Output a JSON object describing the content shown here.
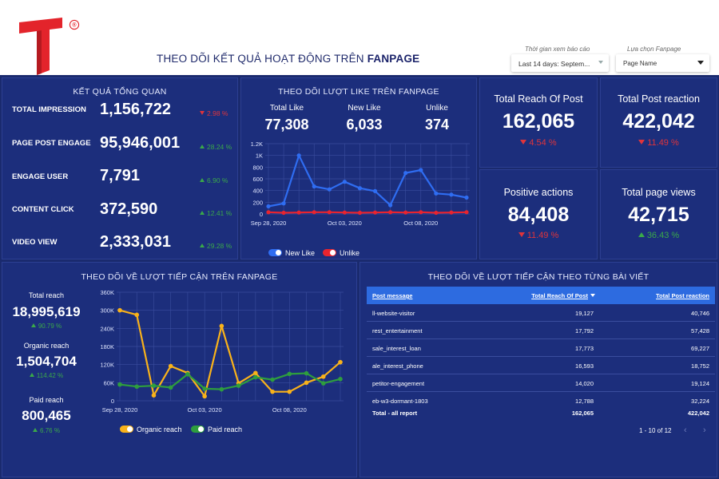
{
  "header": {
    "title_prefix": "THEO DÕI KẾT QUẢ HOẠT ĐỘNG TRÊN ",
    "title_bold": "FANPAGE",
    "date_filter_label": "Thời gian xem báo cáo",
    "date_filter_value": "Last 14 days: Septem...",
    "page_filter_label": "Lựa chọn Fanpage",
    "page_filter_value": "Page Name",
    "registered_mark": "®"
  },
  "overview": {
    "title": "KẾT QUẢ TỔNG QUAN",
    "rows": [
      {
        "label": "TOTAL IMPRESSION",
        "value": "1,156,722",
        "delta": "2.98 %",
        "dir": "down"
      },
      {
        "label": "PAGE POST ENGAGE",
        "value": "95,946,001",
        "delta": "28.24 %",
        "dir": "up"
      },
      {
        "label": "ENGAGE USER",
        "value": "7,791",
        "delta": "6.90 %",
        "dir": "up"
      },
      {
        "label": "CONTENT CLICK",
        "value": "372,590",
        "delta": "12.41 %",
        "dir": "up"
      },
      {
        "label": "VIDEO VIEW",
        "value": "2,333,031",
        "delta": "29.28 %",
        "dir": "up"
      }
    ]
  },
  "likes": {
    "title": "THEO DÕI LƯỢT LIKE TRÊN FANPAGE",
    "stats": [
      {
        "label": "Total Like",
        "value": "77,308"
      },
      {
        "label": "New Like",
        "value": "6,033"
      },
      {
        "label": "Unlike",
        "value": "374"
      }
    ],
    "legend_new": "New Like",
    "legend_unlike": "Unlike"
  },
  "cards": [
    {
      "title": "Total Reach Of Post",
      "value": "162,065",
      "delta": "4.54 %",
      "dir": "down"
    },
    {
      "title": "Total Post reaction",
      "value": "422,042",
      "delta": "11.49 %",
      "dir": "down"
    },
    {
      "title": "Positive actions",
      "value": "84,408",
      "delta": "11.49 %",
      "dir": "down"
    },
    {
      "title": "Total page views",
      "value": "42,715",
      "delta": "36.43 %",
      "dir": "up"
    }
  ],
  "reach": {
    "title": "THEO DÕI VỀ LƯỢT TIẾP CẬN TRÊN FANPAGE",
    "stats": [
      {
        "label": "Total reach",
        "value": "18,995,619",
        "delta": "90.79 %"
      },
      {
        "label": "Organic reach",
        "value": "1,504,704",
        "delta": "114.42 %"
      },
      {
        "label": "Paid reach",
        "value": "800,465",
        "delta": "6.76 %"
      }
    ],
    "legend_organic": "Organic reach",
    "legend_paid": "Paid reach"
  },
  "table": {
    "title": "THEO DÕI VỀ LƯỢT TIẾP CẬN THEO TỪNG BÀI VIẾT",
    "headers": [
      "Post message",
      "Total Reach Of Post",
      "Total Post reaction"
    ],
    "rows": [
      [
        "ll-website-visitor",
        "19,127",
        "40,746"
      ],
      [
        "rest_entertainment",
        "17,792",
        "57,428"
      ],
      [
        "sale_interest_loan",
        "17,773",
        "69,227"
      ],
      [
        "ale_interest_phone",
        "16,593",
        "18,752"
      ],
      [
        "petitor-engagement",
        "14,020",
        "19,124"
      ],
      [
        "eb-w3-dormant-1803",
        "12,788",
        "32,224"
      ]
    ],
    "total": [
      "Total - all report",
      "162,065",
      "422,042"
    ],
    "pager": "1 - 10 of 12"
  },
  "colors": {
    "bg": "#1a2a6e",
    "panel": "#1c2e7c",
    "blue_line": "#2f6df2",
    "red_line": "#e8242f",
    "orange_line": "#f9b21a",
    "green_line": "#2e9e3e",
    "brand_red": "#e3242b"
  },
  "chart_data": [
    {
      "type": "line",
      "title": "THEO DÕI LƯỢT LIKE TRÊN FANPAGE",
      "x": [
        "Sep 28",
        "Sep 29",
        "Sep 30",
        "Oct 01",
        "Oct 02",
        "Oct 03",
        "Oct 04",
        "Oct 05",
        "Oct 06",
        "Oct 07",
        "Oct 08",
        "Oct 09",
        "Oct 10",
        "Oct 11"
      ],
      "x_ticks": [
        "Sep 28, 2020",
        "Oct 03, 2020",
        "Oct 08, 2020"
      ],
      "ylim": [
        0,
        1200
      ],
      "y_ticks": [
        "0",
        "200",
        "400",
        "600",
        "800",
        "1K",
        "1.2K"
      ],
      "series": [
        {
          "name": "New Like",
          "color": "#2f6df2",
          "values": [
            130,
            180,
            1000,
            470,
            420,
            550,
            440,
            390,
            150,
            700,
            750,
            350,
            330,
            280
          ]
        },
        {
          "name": "Unlike",
          "color": "#e8242f",
          "values": [
            30,
            20,
            25,
            30,
            30,
            25,
            20,
            25,
            30,
            25,
            30,
            20,
            25,
            30
          ]
        }
      ]
    },
    {
      "type": "line",
      "title": "THEO DÕI VỀ LƯỢT TIẾP CẬN TRÊN FANPAGE",
      "x": [
        "Sep 28",
        "Sep 29",
        "Sep 30",
        "Oct 01",
        "Oct 02",
        "Oct 03",
        "Oct 04",
        "Oct 05",
        "Oct 06",
        "Oct 07",
        "Oct 08",
        "Oct 09",
        "Oct 10",
        "Oct 11"
      ],
      "x_ticks": [
        "Sep 28, 2020",
        "Oct 03, 2020",
        "Oct 08, 2020"
      ],
      "ylim": [
        0,
        360000
      ],
      "y_ticks": [
        "0",
        "60K",
        "120K",
        "180K",
        "240K",
        "300K",
        "360K"
      ],
      "series": [
        {
          "name": "Organic reach",
          "color": "#f9b21a",
          "values": [
            300000,
            285000,
            18000,
            115000,
            92000,
            15000,
            248000,
            58000,
            92000,
            30000,
            30000,
            60000,
            80000,
            128000
          ]
        },
        {
          "name": "Paid reach",
          "color": "#2e9e3e",
          "values": [
            54000,
            47000,
            50000,
            44000,
            88000,
            40000,
            38000,
            50000,
            78000,
            70000,
            89000,
            91000,
            58000,
            72000
          ]
        }
      ]
    }
  ]
}
